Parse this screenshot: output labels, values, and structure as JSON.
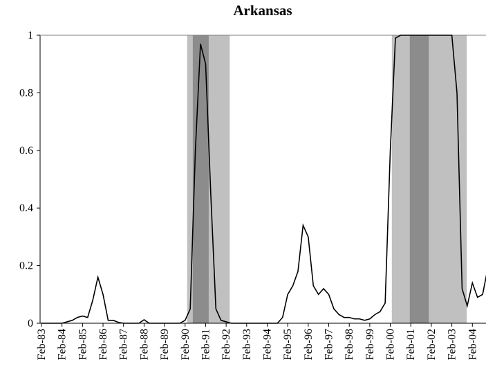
{
  "chart_data": {
    "type": "line",
    "title": "Arkansas",
    "categories": [
      "Feb-83",
      null,
      null,
      null,
      "Feb-84",
      null,
      null,
      null,
      "Feb-85",
      null,
      null,
      null,
      "Feb-86",
      null,
      null,
      null,
      "Feb-87",
      null,
      null,
      null,
      "Feb-88",
      null,
      null,
      null,
      "Feb-89",
      null,
      null,
      null,
      "Feb-90",
      null,
      null,
      null,
      "Feb-91",
      null,
      null,
      null,
      "Feb-92",
      null,
      null,
      null,
      "Feb-93",
      null,
      null,
      null,
      "Feb-94",
      null,
      null,
      null,
      "Feb-95",
      null,
      null,
      null,
      "Feb-96",
      null,
      null,
      null,
      "Feb-97",
      null,
      null,
      null,
      "Feb-98",
      null,
      null,
      null,
      "Feb-99",
      null,
      null,
      null,
      "Feb-00",
      null,
      null,
      null,
      "Feb-01",
      null,
      null,
      null,
      "Feb-02",
      null,
      null,
      null,
      "Feb-03",
      null,
      null,
      null,
      "Feb-04",
      null,
      null,
      null
    ],
    "values": [
      0,
      0,
      0,
      0,
      0,
      0.005,
      0.01,
      0.02,
      0.025,
      0.02,
      0.08,
      0.16,
      0.1,
      0.01,
      0.01,
      0.003,
      0,
      0,
      0,
      0,
      0.012,
      0,
      0,
      0,
      0,
      0,
      0,
      0,
      0.01,
      0.05,
      0.6,
      0.97,
      0.9,
      0.45,
      0.05,
      0.01,
      0.005,
      0,
      0,
      0,
      0,
      0,
      0,
      0,
      0,
      0,
      0,
      0.02,
      0.1,
      0.13,
      0.18,
      0.34,
      0.3,
      0.13,
      0.1,
      0.12,
      0.1,
      0.05,
      0.03,
      0.02,
      0.02,
      0.015,
      0.015,
      0.01,
      0.015,
      0.03,
      0.04,
      0.07,
      0.6,
      0.99,
      1,
      1,
      1,
      1,
      1,
      1,
      1,
      1,
      1,
      1,
      1,
      0.8,
      0.12,
      0.06,
      0.14,
      0.09,
      0.1,
      0.19
    ],
    "color": "#000000",
    "shading": [
      {
        "start": 28.4,
        "end": 36.7,
        "color": "#c0c0c0"
      },
      {
        "start": 29.5,
        "end": 32.6,
        "color": "#8c8c8c"
      },
      {
        "start": 68.3,
        "end": 82.9,
        "color": "#c0c0c0"
      },
      {
        "start": 71.8,
        "end": 75.5,
        "color": "#8c8c8c"
      }
    ],
    "ylim": [
      0,
      1
    ],
    "yticks": [
      0,
      0.2,
      0.4,
      0.6,
      0.8,
      1
    ]
  }
}
